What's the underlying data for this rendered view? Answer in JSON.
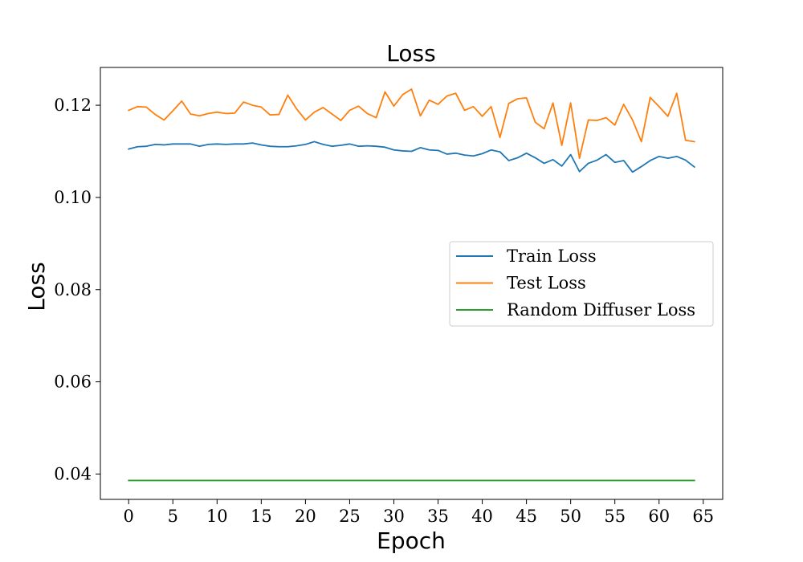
{
  "chart_data": {
    "type": "line",
    "title": "Loss",
    "xlabel": "Epoch",
    "ylabel": "Loss",
    "xlim": [
      -3.2,
      67.2
    ],
    "ylim": [
      0.0345,
      0.1282
    ],
    "xticks": [
      0,
      5,
      10,
      15,
      20,
      25,
      30,
      35,
      40,
      45,
      50,
      55,
      60,
      65
    ],
    "yticks": [
      0.04,
      0.06,
      0.08,
      0.1,
      0.12
    ],
    "ytick_labels": [
      "0.04",
      "0.06",
      "0.08",
      "0.10",
      "0.12"
    ],
    "grid": false,
    "legend_position": "center-right",
    "x": [
      0,
      1,
      2,
      3,
      4,
      5,
      6,
      7,
      8,
      9,
      10,
      11,
      12,
      13,
      14,
      15,
      16,
      17,
      18,
      19,
      20,
      21,
      22,
      23,
      24,
      25,
      26,
      27,
      28,
      29,
      30,
      31,
      32,
      33,
      34,
      35,
      36,
      37,
      38,
      39,
      40,
      41,
      42,
      43,
      44,
      45,
      46,
      47,
      48,
      49,
      50,
      51,
      52,
      53,
      54,
      55,
      56,
      57,
      58,
      59,
      60,
      61,
      62,
      63,
      64
    ],
    "series": [
      {
        "name": "Train Loss",
        "color": "#1f77b4",
        "values": [
          0.1105,
          0.111,
          0.1111,
          0.1115,
          0.1114,
          0.1116,
          0.1116,
          0.1116,
          0.1111,
          0.1115,
          0.1116,
          0.1115,
          0.1116,
          0.1116,
          0.1118,
          0.1114,
          0.1111,
          0.111,
          0.111,
          0.1112,
          0.1115,
          0.1121,
          0.1115,
          0.1111,
          0.1113,
          0.1116,
          0.1111,
          0.1112,
          0.1111,
          0.1109,
          0.1103,
          0.1101,
          0.11,
          0.1108,
          0.1103,
          0.1102,
          0.1094,
          0.1096,
          0.1092,
          0.109,
          0.1095,
          0.1103,
          0.1099,
          0.108,
          0.1086,
          0.1096,
          0.1086,
          0.1074,
          0.1082,
          0.1068,
          0.1093,
          0.1056,
          0.1074,
          0.1081,
          0.1093,
          0.1076,
          0.108,
          0.1055,
          0.1067,
          0.108,
          0.1089,
          0.1085,
          0.1089,
          0.1081,
          0.1066
        ]
      },
      {
        "name": "Test Loss",
        "color": "#ff7f0e",
        "values": [
          0.1189,
          0.1197,
          0.1196,
          0.118,
          0.1168,
          0.1188,
          0.1209,
          0.1181,
          0.1177,
          0.1182,
          0.1185,
          0.1182,
          0.1183,
          0.1207,
          0.12,
          0.1196,
          0.1179,
          0.118,
          0.1222,
          0.1192,
          0.1168,
          0.1185,
          0.1195,
          0.1181,
          0.1167,
          0.1189,
          0.1198,
          0.1182,
          0.1173,
          0.1229,
          0.1198,
          0.1223,
          0.1235,
          0.1177,
          0.1211,
          0.1202,
          0.122,
          0.1226,
          0.1189,
          0.1197,
          0.1176,
          0.1197,
          0.113,
          0.1204,
          0.1214,
          0.1216,
          0.1163,
          0.1149,
          0.1205,
          0.1113,
          0.1205,
          0.1085,
          0.1168,
          0.1167,
          0.1173,
          0.1157,
          0.1202,
          0.1168,
          0.1121,
          0.1217,
          0.1197,
          0.1176,
          0.1226,
          0.1124,
          0.1121
        ]
      },
      {
        "name": "Random Diffuser Loss",
        "color": "#2ca02c",
        "values": [
          0.0386,
          0.0386,
          0.0386,
          0.0386,
          0.0386,
          0.0386,
          0.0386,
          0.0386,
          0.0386,
          0.0386,
          0.0386,
          0.0386,
          0.0386,
          0.0386,
          0.0386,
          0.0386,
          0.0386,
          0.0386,
          0.0386,
          0.0386,
          0.0386,
          0.0386,
          0.0386,
          0.0386,
          0.0386,
          0.0386,
          0.0386,
          0.0386,
          0.0386,
          0.0386,
          0.0386,
          0.0386,
          0.0386,
          0.0386,
          0.0386,
          0.0386,
          0.0386,
          0.0386,
          0.0386,
          0.0386,
          0.0386,
          0.0386,
          0.0386,
          0.0386,
          0.0386,
          0.0386,
          0.0386,
          0.0386,
          0.0386,
          0.0386,
          0.0386,
          0.0386,
          0.0386,
          0.0386,
          0.0386,
          0.0386,
          0.0386,
          0.0386,
          0.0386,
          0.0386,
          0.0386,
          0.0386,
          0.0386,
          0.0386,
          0.0386
        ]
      }
    ]
  }
}
